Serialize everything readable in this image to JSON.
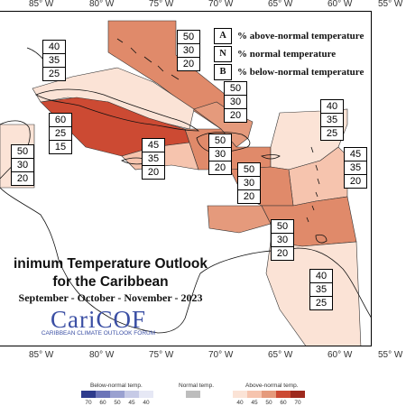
{
  "map": {
    "lon_labels_top": [
      "85° W",
      "80° W",
      "75° W",
      "70° W",
      "65° W",
      "60° W",
      "55° W"
    ],
    "lon_labels_bottom": [
      "85° W",
      "80° W",
      "75° W",
      "70° W",
      "65° W",
      "60° W",
      "55° W"
    ],
    "title_line1": "inimum Temperature Outlook",
    "title_line2": "for the Caribbean",
    "subtitle": "September - October - November - 2023",
    "logo_text": "CariCOF",
    "logo_subtext": "CARIBBEAN CLIMATE OUTLOOK FORUM"
  },
  "key": [
    {
      "letter": "A",
      "text": "% above-normal temperature"
    },
    {
      "letter": "N",
      "text": "% normal temperature"
    },
    {
      "letter": "B",
      "text": "% below-normal temperature"
    }
  ],
  "zones": [
    {
      "name": "bahamas",
      "A": "50",
      "N": "30",
      "B": "20",
      "color": "#e08a6a"
    },
    {
      "name": "cuba-north",
      "A": "40",
      "N": "35",
      "B": "25",
      "color": "#fbe3d6"
    },
    {
      "name": "cuba-west",
      "A": "60",
      "N": "25",
      "B": "15",
      "color": "#cc4a33"
    },
    {
      "name": "hispaniola-north",
      "A": "50",
      "N": "30",
      "B": "20",
      "color": "#e59a7c"
    },
    {
      "name": "jamaica",
      "A": "45",
      "N": "35",
      "B": "20",
      "color": "#f6c4ae"
    },
    {
      "name": "hispaniola",
      "A": "50",
      "N": "30",
      "B": "20",
      "color": "#e08a6a"
    },
    {
      "name": "leeward-north",
      "A": "40",
      "N": "35",
      "B": "25",
      "color": "#fbe3d6"
    },
    {
      "name": "leeward",
      "A": "45",
      "N": "35",
      "B": "20",
      "color": "#f6c4ae"
    },
    {
      "name": "puerto-rico",
      "A": "50",
      "N": "30",
      "B": "20",
      "color": "#e08a6a"
    },
    {
      "name": "west-central",
      "A": "50",
      "N": "30",
      "B": "20",
      "color": "#e59a7c"
    },
    {
      "name": "windward",
      "A": "50",
      "N": "30",
      "B": "20",
      "color": "#e08a6a"
    },
    {
      "name": "guianas",
      "A": "40",
      "N": "35",
      "B": "25",
      "color": "#fbe3d6"
    }
  ],
  "colorbar": {
    "below_title": "Below-normal temp.",
    "normal_title": "Normal temp.",
    "above_title": "Above-normal temp.",
    "below": [
      {
        "label": "70",
        "color": "#2e3b8c"
      },
      {
        "label": "60",
        "color": "#6b74b8"
      },
      {
        "label": "50",
        "color": "#9aa1d0"
      },
      {
        "label": "45",
        "color": "#c6cae6"
      },
      {
        "label": "40",
        "color": "#e6e8f5"
      }
    ],
    "normal": [
      {
        "label": "",
        "color": "#bdbdbd"
      }
    ],
    "above": [
      {
        "label": "40",
        "color": "#fbe3d6"
      },
      {
        "label": "45",
        "color": "#f6c4ae"
      },
      {
        "label": "50",
        "color": "#e59a7c"
      },
      {
        "label": "60",
        "color": "#cc4a33"
      },
      {
        "label": "70",
        "color": "#9e2a1e"
      }
    ]
  }
}
